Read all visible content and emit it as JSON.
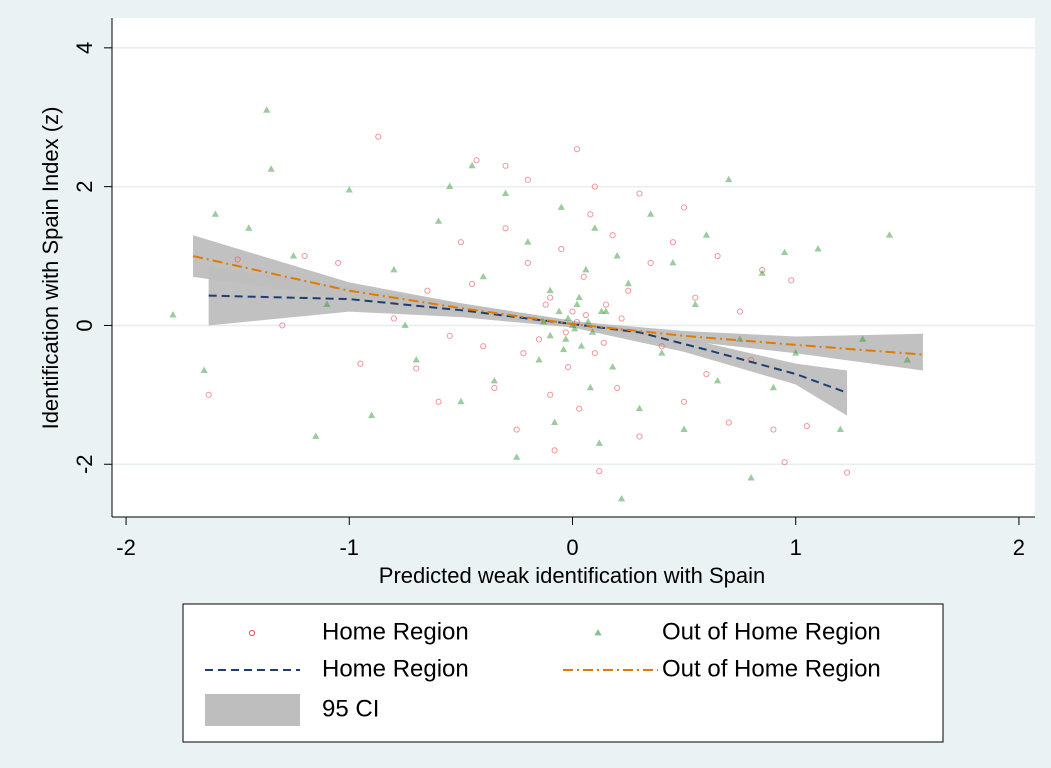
{
  "chart_data": {
    "type": "scatter",
    "xlabel": "Predicted weak identification with Spain",
    "ylabel": "Identification with Spain Index (z)",
    "xlim": [
      -2.063,
      2.072
    ],
    "ylim": [
      -2.76,
      4.43
    ],
    "xticks": [
      -2,
      -1,
      0,
      1,
      2
    ],
    "yticks": [
      -2,
      0,
      2,
      4
    ],
    "grid": true,
    "ci_bands": {
      "name": "95 CI",
      "color": "#bebebe",
      "bands": [
        {
          "x": [
            -1.63,
            -1,
            -0.5,
            0,
            0.5,
            1,
            1.23
          ],
          "lower": [
            0.0,
            0.2,
            0.12,
            -0.03,
            -0.38,
            -0.85,
            -1.3
          ],
          "upper": [
            0.85,
            0.55,
            0.32,
            0.07,
            -0.18,
            -0.55,
            -0.65
          ]
        },
        {
          "x": [
            -1.7,
            -1,
            -0.5,
            0,
            0.5,
            1,
            1.57
          ],
          "lower": [
            0.7,
            0.38,
            0.18,
            -0.02,
            -0.22,
            -0.4,
            -0.65
          ],
          "upper": [
            1.3,
            0.62,
            0.32,
            0.06,
            -0.08,
            -0.16,
            -0.12
          ]
        }
      ]
    },
    "series": [
      {
        "name": "Home Region",
        "type": "scatter",
        "marker": "circle",
        "color": "#e8535a",
        "x": [
          -1.63,
          -0.87,
          0.02,
          -0.43,
          -0.3,
          0.5,
          0.98,
          1.23,
          0.95,
          -1.3,
          -1.2,
          -1.05,
          -0.95,
          -0.7,
          -0.6,
          -0.5,
          -0.45,
          -0.4,
          -0.35,
          -0.3,
          -0.25,
          -0.2,
          -0.15,
          -0.1,
          -0.08,
          -0.05,
          -0.02,
          0.0,
          0.03,
          0.05,
          0.08,
          0.1,
          0.12,
          0.15,
          0.18,
          0.2,
          0.25,
          0.3,
          0.35,
          0.4,
          0.45,
          0.5,
          0.55,
          0.6,
          0.65,
          0.7,
          0.75,
          0.8,
          0.85,
          0.9,
          1.05,
          -1.5,
          -0.8,
          -0.65,
          -0.55,
          -0.2,
          0.1,
          0.3,
          -0.1,
          0.02,
          -0.03,
          0.06,
          -0.12,
          0.14,
          -0.22,
          0.22
        ],
        "values": [
          -1.0,
          2.72,
          2.54,
          2.38,
          2.3,
          1.7,
          0.65,
          -2.12,
          -1.97,
          0.0,
          1.0,
          0.9,
          -0.55,
          -0.62,
          -1.1,
          1.2,
          0.6,
          -0.3,
          -0.9,
          1.4,
          -1.5,
          0.9,
          -0.2,
          0.4,
          -1.8,
          1.1,
          -0.6,
          0.2,
          -1.2,
          0.7,
          1.6,
          -0.4,
          -2.1,
          0.3,
          1.3,
          -0.9,
          0.5,
          -1.6,
          0.9,
          -0.3,
          1.2,
          -1.1,
          0.4,
          -0.7,
          1.0,
          -1.4,
          0.2,
          -0.5,
          0.8,
          -1.5,
          -1.45,
          0.95,
          0.1,
          0.5,
          -0.15,
          2.1,
          2.0,
          1.9,
          -1.0,
          0.05,
          -0.1,
          0.15,
          0.3,
          -0.25,
          -0.4,
          0.1
        ]
      },
      {
        "name": "Out of Home Region",
        "type": "scatter",
        "marker": "triangle",
        "color": "#3a9a3a",
        "x": [
          -1.79,
          -1.37,
          -1.6,
          -1.45,
          -1.35,
          -1.25,
          -1.15,
          -1.0,
          -0.9,
          -0.8,
          -0.7,
          -0.6,
          -0.55,
          -0.5,
          -0.45,
          -0.4,
          -0.35,
          -0.3,
          -0.25,
          -0.2,
          -0.15,
          -0.1,
          -0.08,
          -0.05,
          -0.03,
          0.0,
          0.02,
          0.04,
          0.06,
          0.08,
          0.1,
          0.12,
          0.15,
          0.18,
          0.2,
          0.22,
          0.25,
          0.3,
          0.35,
          0.4,
          0.45,
          0.5,
          0.55,
          0.6,
          0.65,
          0.7,
          0.75,
          0.8,
          0.85,
          0.9,
          0.95,
          1.0,
          1.1,
          1.2,
          1.3,
          1.42,
          1.5,
          -1.65,
          -1.1,
          -0.75,
          -0.02,
          0.01,
          -0.06,
          0.07,
          -0.1,
          0.03,
          -0.04,
          0.09,
          -0.13,
          0.13
        ],
        "values": [
          0.15,
          3.1,
          1.6,
          1.4,
          2.25,
          1.0,
          -1.6,
          1.95,
          -1.3,
          0.8,
          -0.5,
          1.5,
          2.0,
          -1.1,
          2.3,
          0.7,
          -0.8,
          1.9,
          -1.9,
          1.2,
          -0.5,
          0.5,
          -1.4,
          1.7,
          -0.2,
          0.0,
          0.3,
          -0.3,
          0.8,
          -0.9,
          1.4,
          -1.7,
          0.2,
          -0.6,
          1.0,
          -2.5,
          0.6,
          -1.2,
          1.6,
          -0.4,
          0.9,
          -1.5,
          0.3,
          1.3,
          -0.8,
          2.1,
          -0.2,
          -2.2,
          0.75,
          -0.9,
          1.05,
          -0.4,
          1.1,
          -1.5,
          -0.2,
          1.3,
          -0.5,
          -0.65,
          0.3,
          0.0,
          0.1,
          -0.05,
          0.2,
          0.05,
          -0.15,
          0.4,
          -0.35,
          -0.1,
          0.05,
          0.2
        ]
      },
      {
        "name": "Home Region",
        "type": "line",
        "dash": "8 5",
        "color": "#1f3d6e",
        "x": [
          -1.63,
          -1,
          -0.5,
          0,
          0.3,
          0.6,
          1,
          1.23
        ],
        "values": [
          0.43,
          0.38,
          0.22,
          0.02,
          -0.1,
          -0.35,
          -0.7,
          -0.97
        ]
      },
      {
        "name": "Out of Home Region",
        "type": "line",
        "dash": "10 4 2 4",
        "color": "#e07b00",
        "x": [
          -1.7,
          -1,
          -0.5,
          0,
          0.5,
          1,
          1.57
        ],
        "values": [
          1.0,
          0.5,
          0.25,
          0.02,
          -0.15,
          -0.28,
          -0.42
        ]
      }
    ]
  }
}
